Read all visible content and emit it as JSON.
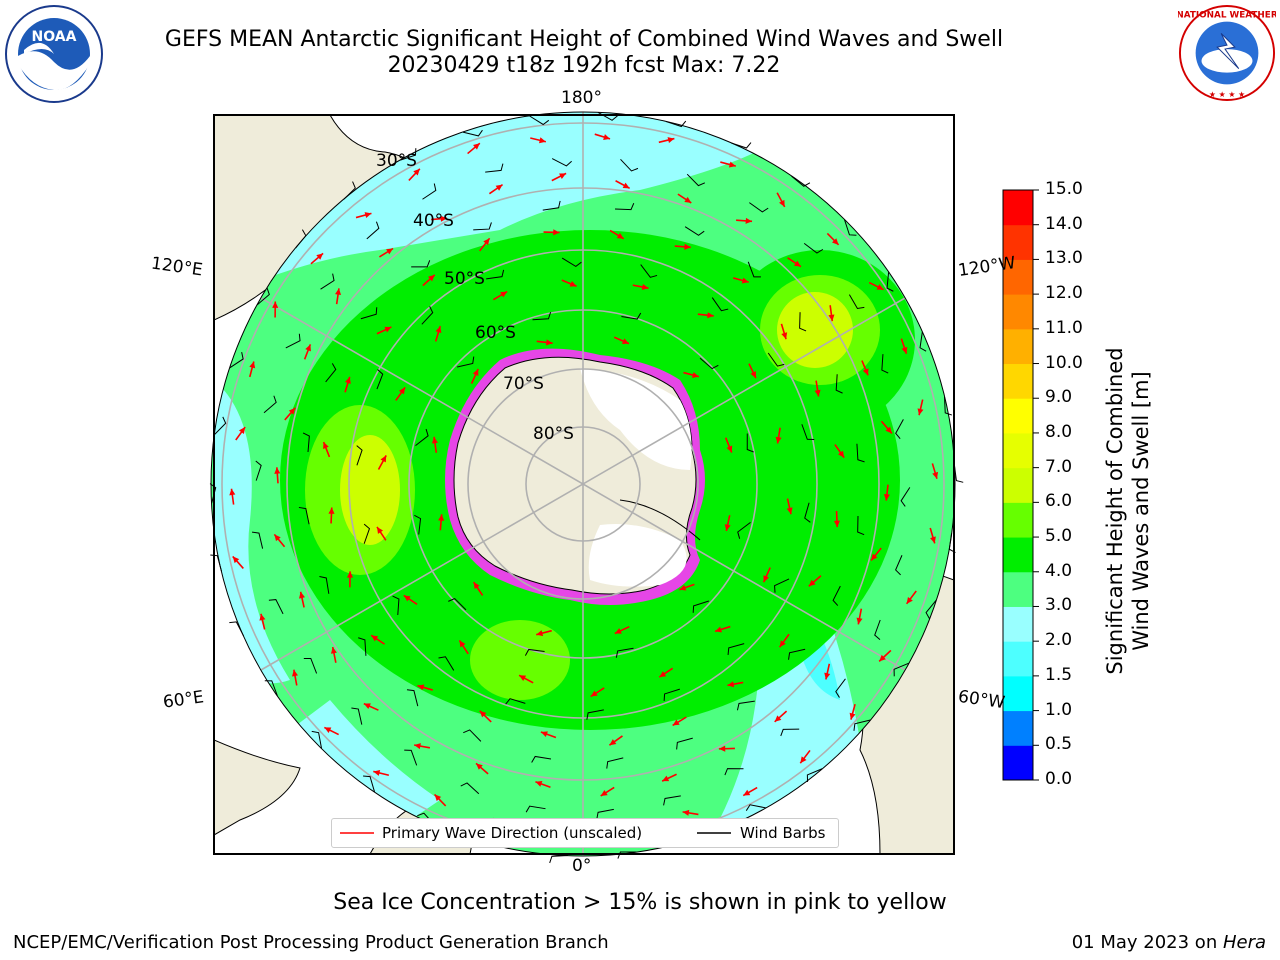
{
  "header": {
    "title_line1": "GEFS MEAN Antarctic Significant Height of Combined Wind Waves and Swell",
    "title_line2": "20230429 t18z 192h fcst   Max: 7.22"
  },
  "logos": {
    "left": "noaa-logo",
    "left_text": "NOAA",
    "right": "national-weather-service-logo",
    "right_text": "NATIONAL WEATHER SERVICE"
  },
  "map": {
    "projection": "south-polar-stereographic",
    "latitude_labels": [
      "30°S",
      "40°S",
      "50°S",
      "60°S",
      "70°S",
      "80°S"
    ],
    "longitude_labels": {
      "top": "180°",
      "bottom": "0°",
      "upper_left": "120°E",
      "lower_left": "60°E",
      "upper_right": "120°W",
      "lower_right": "60°W"
    },
    "colors": {
      "land": "#efecda",
      "ice_shelf": "#ffffff",
      "sea_ice_edge": "#ff33ff",
      "wave_arrow": "#ff0000",
      "wind_barb": "#000000"
    }
  },
  "legend": {
    "primary_wave": "Primary Wave Direction (unscaled)",
    "wind_barbs": "Wind Barbs"
  },
  "colorbar": {
    "title_line1": "Significant Height of Combined",
    "title_line2": "Wind Waves and Swell [m]",
    "ticks": [
      "0.0",
      "0.5",
      "1.0",
      "1.5",
      "2.0",
      "3.0",
      "4.0",
      "5.0",
      "6.0",
      "7.0",
      "8.0",
      "9.0",
      "10.0",
      "11.0",
      "12.0",
      "13.0",
      "14.0",
      "15.0"
    ],
    "colors": [
      "#0000ff",
      "#0080ff",
      "#00ffff",
      "#4dffff",
      "#99ffff",
      "#4dff80",
      "#00ee00",
      "#66ff00",
      "#ccff00",
      "#e6ff00",
      "#ffff00",
      "#ffd700",
      "#ffb000",
      "#ff8800",
      "#ff6600",
      "#ff3300",
      "#ff0000"
    ]
  },
  "notes": {
    "sea_ice": "Sea Ice Concentration > 15% is shown in pink to yellow"
  },
  "footer": {
    "left": "NCEP/EMC/Verification Post Processing Product Generation Branch",
    "date": "01 May 2023 on ",
    "machine": "Hera"
  }
}
